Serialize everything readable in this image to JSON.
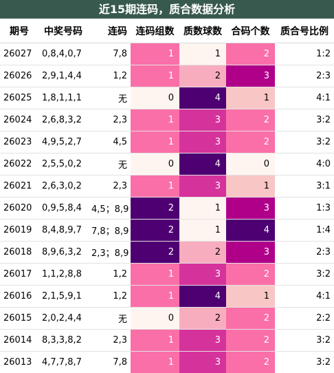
{
  "title": "近15期连码，质合数据分析",
  "headers": [
    "期号",
    "中奖号码",
    "连码",
    "连码组数",
    "质数球数",
    "合码个数",
    "质合号比例"
  ],
  "palette": {
    "level_colors": {
      "0": "#FFF5F0",
      "1": "#FA6FA8",
      "2": "#F8ADBE",
      "3": "#D6329B",
      "4": "#4E0072"
    },
    "legend_note": "colors keyed by value per column",
    "col_group_colors": {
      "group": {
        "0": "#FFF5F0",
        "1": "#FA6FA8",
        "2": "#4E0072"
      },
      "prime": {
        "1": "#FFF5F0",
        "2": "#F8ADBE",
        "3": "#D6329B",
        "4": "#4E0072"
      },
      "composite": {
        "0": "#FFF5F0",
        "1": "#F9C6C6",
        "2": "#FA6FA8",
        "3": "#B0008A",
        "4": "#4E0072"
      }
    },
    "light_text": "#ffffff",
    "dark_text": "#000000"
  },
  "rows": [
    {
      "issue": "26027",
      "numbers": "0,8,4,0,7",
      "consec": "7,8",
      "groups": 1,
      "primes": 1,
      "composites": 2,
      "ratio": "1:2"
    },
    {
      "issue": "26026",
      "numbers": "2,9,1,4,4",
      "consec": "1,2",
      "groups": 1,
      "primes": 2,
      "composites": 3,
      "ratio": "2:3"
    },
    {
      "issue": "26025",
      "numbers": "1,8,1,1,1",
      "consec": "无",
      "groups": 0,
      "primes": 4,
      "composites": 1,
      "ratio": "4:1"
    },
    {
      "issue": "26024",
      "numbers": "2,6,8,3,2",
      "consec": "2,3",
      "groups": 1,
      "primes": 3,
      "composites": 2,
      "ratio": "3:2"
    },
    {
      "issue": "26023",
      "numbers": "4,9,5,2,7",
      "consec": "4,5",
      "groups": 1,
      "primes": 3,
      "composites": 2,
      "ratio": "3:2"
    },
    {
      "issue": "26022",
      "numbers": "2,5,5,0,2",
      "consec": "无",
      "groups": 0,
      "primes": 4,
      "composites": 0,
      "ratio": "4:0"
    },
    {
      "issue": "26021",
      "numbers": "2,6,3,0,2",
      "consec": "2,3",
      "groups": 1,
      "primes": 3,
      "composites": 1,
      "ratio": "3:1"
    },
    {
      "issue": "26020",
      "numbers": "0,9,5,8,4",
      "consec": "4,5；8,9",
      "groups": 2,
      "primes": 1,
      "composites": 3,
      "ratio": "1:3"
    },
    {
      "issue": "26019",
      "numbers": "8,4,8,9,7",
      "consec": "7,8；8,9",
      "groups": 2,
      "primes": 1,
      "composites": 4,
      "ratio": "1:4"
    },
    {
      "issue": "26018",
      "numbers": "8,9,6,3,2",
      "consec": "2,3；8,9",
      "groups": 2,
      "primes": 2,
      "composites": 3,
      "ratio": "2:3"
    },
    {
      "issue": "26017",
      "numbers": "1,1,2,8,8",
      "consec": "1,2",
      "groups": 1,
      "primes": 3,
      "composites": 2,
      "ratio": "3:2"
    },
    {
      "issue": "26016",
      "numbers": "2,1,5,9,1",
      "consec": "1,2",
      "groups": 1,
      "primes": 4,
      "composites": 1,
      "ratio": "4:1"
    },
    {
      "issue": "26015",
      "numbers": "2,0,2,4,4",
      "consec": "无",
      "groups": 0,
      "primes": 2,
      "composites": 2,
      "ratio": "2:2"
    },
    {
      "issue": "26014",
      "numbers": "8,3,3,8,2",
      "consec": "2,3",
      "groups": 1,
      "primes": 3,
      "composites": 2,
      "ratio": "3:2"
    },
    {
      "issue": "26013",
      "numbers": "4,7,7,8,7",
      "consec": "7,8",
      "groups": 1,
      "primes": 3,
      "composites": 2,
      "ratio": "3:2"
    }
  ]
}
